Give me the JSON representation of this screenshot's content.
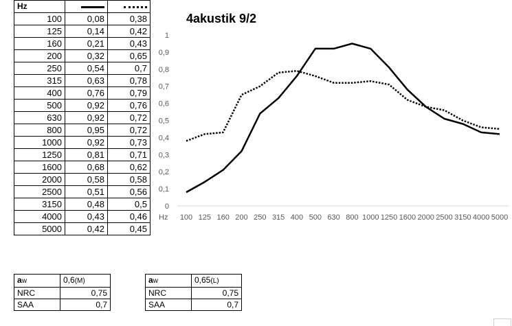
{
  "table": {
    "header": {
      "hz": "Hz"
    },
    "rows": [
      {
        "hz": "100",
        "solid": "0,08",
        "dotted": "0,38"
      },
      {
        "hz": "125",
        "solid": "0,14",
        "dotted": "0,42"
      },
      {
        "hz": "160",
        "solid": "0,21",
        "dotted": "0,43"
      },
      {
        "hz": "200",
        "solid": "0,32",
        "dotted": "0,65"
      },
      {
        "hz": "250",
        "solid": "0,54",
        "dotted": "0,7"
      },
      {
        "hz": "315",
        "solid": "0,63",
        "dotted": "0,78"
      },
      {
        "hz": "400",
        "solid": "0,76",
        "dotted": "0,79"
      },
      {
        "hz": "500",
        "solid": "0,92",
        "dotted": "0,76"
      },
      {
        "hz": "630",
        "solid": "0,92",
        "dotted": "0,72"
      },
      {
        "hz": "800",
        "solid": "0,95",
        "dotted": "0,72"
      },
      {
        "hz": "1000",
        "solid": "0,92",
        "dotted": "0,73"
      },
      {
        "hz": "1250",
        "solid": "0,81",
        "dotted": "0,71"
      },
      {
        "hz": "1600",
        "solid": "0,68",
        "dotted": "0,62"
      },
      {
        "hz": "2000",
        "solid": "0,58",
        "dotted": "0,58"
      },
      {
        "hz": "2500",
        "solid": "0,51",
        "dotted": "0,56"
      },
      {
        "hz": "3150",
        "solid": "0,48",
        "dotted": "0,5"
      },
      {
        "hz": "4000",
        "solid": "0,43",
        "dotted": "0,46"
      },
      {
        "hz": "5000",
        "solid": "0,42",
        "dotted": "0,45"
      }
    ]
  },
  "summary_left": {
    "aw_label_main": "a",
    "aw_label_sub": "w",
    "aw_value": "0,6",
    "aw_suffix": "(M)",
    "nrc_label": "NRC",
    "nrc_value": "0,75",
    "saa_label": "SAA",
    "saa_value": "0,7"
  },
  "summary_right": {
    "aw_label_main": "a",
    "aw_label_sub": "w",
    "aw_value": "0,65",
    "aw_suffix": "(L)",
    "nrc_label": "NRC",
    "nrc_value": "0,75",
    "saa_label": "SAA",
    "saa_value": "0,7"
  },
  "chart_data": {
    "type": "line",
    "title": "4akustik 9/2",
    "xlabel": "Hz",
    "ylabel": "",
    "categories": [
      "100",
      "125",
      "160",
      "200",
      "250",
      "315",
      "400",
      "500",
      "630",
      "800",
      "1000",
      "1250",
      "1600",
      "2000",
      "2500",
      "3150",
      "4000",
      "5000"
    ],
    "ylim": [
      0,
      1
    ],
    "yticks": [
      0,
      0.1,
      0.2,
      0.3,
      0.4,
      0.5,
      0.6,
      0.7,
      0.8,
      0.9,
      1
    ],
    "ytick_labels": [
      "0",
      "0,1",
      "0,2",
      "0,3",
      "0,4",
      "0,5",
      "0,6",
      "0,7",
      "0,8",
      "0,9",
      "1"
    ],
    "grid": false,
    "series": [
      {
        "style": "solid",
        "color": "#000000",
        "values": [
          0.08,
          0.14,
          0.21,
          0.32,
          0.54,
          0.63,
          0.76,
          0.92,
          0.92,
          0.95,
          0.92,
          0.81,
          0.68,
          0.58,
          0.51,
          0.48,
          0.43,
          0.42
        ]
      },
      {
        "style": "dotted",
        "color": "#000000",
        "values": [
          0.38,
          0.42,
          0.43,
          0.65,
          0.7,
          0.78,
          0.79,
          0.76,
          0.72,
          0.72,
          0.73,
          0.71,
          0.62,
          0.58,
          0.56,
          0.5,
          0.46,
          0.45
        ]
      }
    ]
  }
}
